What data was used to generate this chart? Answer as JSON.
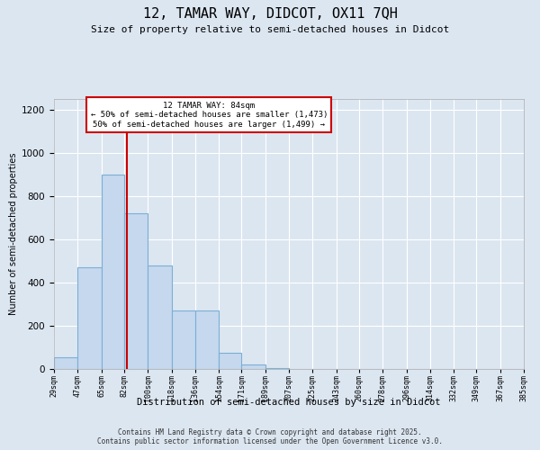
{
  "title": "12, TAMAR WAY, DIDCOT, OX11 7QH",
  "subtitle": "Size of property relative to semi-detached houses in Didcot",
  "xlabel": "Distribution of semi-detached houses by size in Didcot",
  "ylabel": "Number of semi-detached properties",
  "footer_line1": "Contains HM Land Registry data © Crown copyright and database right 2025.",
  "footer_line2": "Contains public sector information licensed under the Open Government Licence v3.0.",
  "annotation_title": "12 TAMAR WAY: 84sqm",
  "annotation_line1": "← 50% of semi-detached houses are smaller (1,473)",
  "annotation_line2": "50% of semi-detached houses are larger (1,499) →",
  "bar_edges": [
    29,
    47,
    65,
    82,
    100,
    118,
    136,
    154,
    171,
    189,
    207,
    225,
    243,
    260,
    278,
    296,
    314,
    332,
    349,
    367,
    385
  ],
  "bar_heights": [
    55,
    470,
    900,
    720,
    480,
    270,
    270,
    75,
    20,
    5,
    0,
    0,
    0,
    0,
    0,
    0,
    0,
    0,
    0,
    0
  ],
  "bar_color": "#c5d8ee",
  "bar_edge_color": "#7bafd4",
  "red_line_x": 84,
  "ylim": [
    0,
    1250
  ],
  "yticks": [
    0,
    200,
    400,
    600,
    800,
    1000,
    1200
  ],
  "background_color": "#dce6f1",
  "plot_bg_color": "#dce6f1",
  "grid_color": "#ffffff",
  "annotation_box_facecolor": "#ffffff",
  "annotation_box_edgecolor": "#cc0000",
  "red_line_color": "#cc0000",
  "title_fontsize": 11,
  "subtitle_fontsize": 8,
  "footer_fontsize": 5.5
}
